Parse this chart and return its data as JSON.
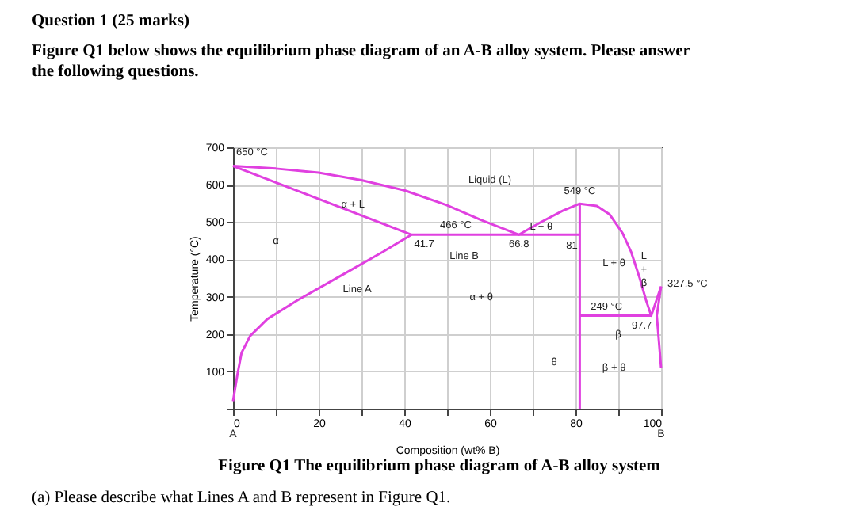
{
  "chart_data": {
    "type": "line",
    "title": "Question 1 (25 marks)",
    "subtitle": "Figure Q1 below shows the equilibrium phase diagram of an A-B alloy system. Please answer the following questions.",
    "xlabel": "Composition (wt% B)",
    "ylabel": "Temperature (°C)",
    "xlim": [
      0,
      100
    ],
    "ylim": [
      0,
      700
    ],
    "xticks": [
      0,
      {
        "value": 10,
        "label": null
      },
      20,
      {
        "value": 30,
        "label": null
      },
      40,
      {
        "value": 50,
        "label": null
      },
      60,
      {
        "value": 70,
        "label": null
      },
      80,
      {
        "value": 90,
        "label": null
      },
      100
    ],
    "yticks": [
      {
        "value": 0,
        "label": null
      },
      100,
      200,
      300,
      400,
      500,
      600,
      700
    ],
    "grid": true,
    "legend": false,
    "marker": "none",
    "line_style": "solid",
    "series": [
      {
        "color": "#e040e0",
        "x": [
          0,
          10,
          20,
          30,
          40,
          50,
          58,
          66.8,
          72,
          77,
          81,
          85,
          88,
          91,
          93,
          95,
          96.5,
          97.7,
          100
        ],
        "values": [
          650,
          643,
          632,
          612,
          585,
          545,
          505,
          466,
          500,
          530,
          549,
          543,
          520,
          470,
          420,
          350,
          290,
          249,
          327.5
        ]
      },
      {
        "color": "#e040e0",
        "x": [
          0,
          41.7,
          81
        ],
        "values": [
          650,
          466,
          466
        ]
      },
      {
        "color": "#e040e0",
        "x": [
          41.7,
          35,
          25,
          15,
          8,
          4,
          2,
          1,
          0
        ],
        "values": [
          466,
          420,
          355,
          290,
          240,
          195,
          150,
          90,
          20
        ]
      },
      {
        "color": "#e040e0",
        "x": [
          81,
          81
        ],
        "values": [
          549,
          0
        ]
      },
      {
        "color": "#e040e0",
        "x": [
          81,
          97.7
        ],
        "values": [
          249,
          249
        ]
      },
      {
        "color": "#e040e0",
        "x": [
          100,
          99,
          99.5,
          100
        ],
        "values": [
          327.5,
          249,
          180,
          110
        ]
      }
    ],
    "annotations": [
      {
        "text": "650 °C",
        "x": 0,
        "y": 650
      },
      {
        "text": "466 °C",
        "x": 55,
        "y": 466
      },
      {
        "text": "41.7",
        "x": 41.7,
        "y": 466
      },
      {
        "text": "66.8",
        "x": 66.8,
        "y": 466
      },
      {
        "text": "81",
        "x": 81,
        "y": 466
      },
      {
        "text": "549 °C",
        "x": 81,
        "y": 549
      },
      {
        "text": "249 °C",
        "x": 88,
        "y": 249
      },
      {
        "text": "97.7",
        "x": 97.7,
        "y": 249
      },
      {
        "text": "327.5 °C",
        "x": 100,
        "y": 327.5
      },
      "Liquid (L)",
      "α + L",
      "α",
      "L + θ",
      "Line B",
      "Line A",
      "α + θ",
      "L + θ",
      "L + β",
      "β",
      "β + θ",
      "θ",
      "A",
      "B",
      "Figure Q1 The equilibrium phase diagram of A-B alloy system",
      "(a)     Please describe what Lines A and B represent in Figure Q1."
    ]
  }
}
